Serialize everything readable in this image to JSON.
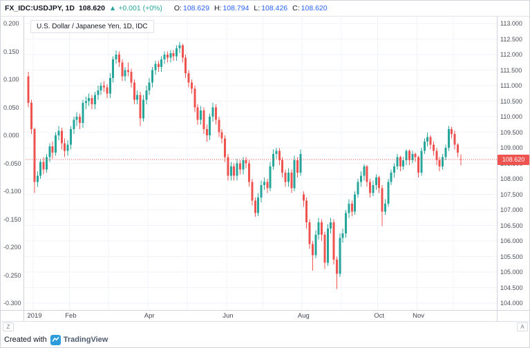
{
  "header": {
    "symbol": "FX_IDC:USDJPY, 1D",
    "price": "108.620",
    "arrow": "▲",
    "change": "+0.001 (+0%)",
    "o_label": "O:",
    "o": "108.629",
    "h_label": "H:",
    "h": "108.794",
    "l_label": "L:",
    "l": "108.426",
    "c_label": "C:",
    "c": "108.620"
  },
  "legend": {
    "title": "U.S. Dollar / Japanese Yen, 1D, IDC"
  },
  "axes": {
    "left_ticks": [
      "0.200",
      "0.150",
      "0.100",
      "0.050",
      "0.000",
      "-0.050",
      "-0.100",
      "-0.150",
      "-0.200",
      "-0.250",
      "-0.300"
    ],
    "right_ticks": [
      "113.000",
      "112.500",
      "112.000",
      "111.500",
      "111.000",
      "110.500",
      "110.000",
      "109.500",
      "109.000",
      "108.500",
      "108.000",
      "107.500",
      "107.000",
      "106.500",
      "106.000",
      "105.500",
      "105.000",
      "104.500",
      "104.000"
    ],
    "x_ticks": [
      {
        "label": "2019",
        "index": 2
      },
      {
        "label": "Feb",
        "index": 14
      },
      {
        "label": "Apr",
        "index": 40
      },
      {
        "label": "Jun",
        "index": 66
      },
      {
        "label": "Aug",
        "index": 91
      },
      {
        "label": "Oct",
        "index": 116
      },
      {
        "label": "Nov",
        "index": 129
      }
    ],
    "month_start_indices": [
      2,
      14,
      27,
      40,
      53,
      66,
      78,
      91,
      104,
      116,
      129,
      141
    ],
    "price_label": "108.620"
  },
  "controls": {
    "left_scale": "Z",
    "right_scale": "A"
  },
  "footer": {
    "created_with": "Created with",
    "brand": "TradingView"
  },
  "colors": {
    "up": "#26a69a",
    "down": "#ef5350",
    "price_line": "#ef5350",
    "badge_bg": "#ef5350",
    "grid": "#f0f3fa",
    "value_text": "#2962ff",
    "change_text": "#26a69a"
  },
  "chart_data": {
    "type": "candlestick",
    "title": "U.S. Dollar / Japanese Yen, 1D, IDC",
    "symbol": "FX_IDC:USDJPY",
    "timeframe": "1D",
    "right_axis_range": [
      104.0,
      113.0
    ],
    "left_axis_range": [
      -0.3,
      0.2
    ],
    "x_range": [
      "Dec 2018",
      "Dec 2019"
    ],
    "last": {
      "o": 108.629,
      "h": 108.794,
      "l": 108.426,
      "c": 108.62
    },
    "candles": [
      [
        111.3,
        111.45,
        110.3,
        110.45
      ],
      [
        110.45,
        110.55,
        109.45,
        109.6
      ],
      [
        109.6,
        109.65,
        107.55,
        107.9
      ],
      [
        107.9,
        108.25,
        107.75,
        108.1
      ],
      [
        108.1,
        108.65,
        108.0,
        108.55
      ],
      [
        108.55,
        108.7,
        108.15,
        108.3
      ],
      [
        108.3,
        108.8,
        108.2,
        108.7
      ],
      [
        108.7,
        109.15,
        108.55,
        109.05
      ],
      [
        109.05,
        109.2,
        108.65,
        108.85
      ],
      [
        108.85,
        109.5,
        108.75,
        109.4
      ],
      [
        109.4,
        109.7,
        109.25,
        109.55
      ],
      [
        109.55,
        109.65,
        108.95,
        109.15
      ],
      [
        109.15,
        109.3,
        108.7,
        108.9
      ],
      [
        108.9,
        109.25,
        108.75,
        109.1
      ],
      [
        109.1,
        109.7,
        108.95,
        109.6
      ],
      [
        109.6,
        110.0,
        109.45,
        109.9
      ],
      [
        109.9,
        110.15,
        109.7,
        110.0
      ],
      [
        110.0,
        110.1,
        109.6,
        109.8
      ],
      [
        109.8,
        110.55,
        109.65,
        110.45
      ],
      [
        110.45,
        110.65,
        110.25,
        110.5
      ],
      [
        110.5,
        110.75,
        110.35,
        110.6
      ],
      [
        110.6,
        110.7,
        110.25,
        110.4
      ],
      [
        110.4,
        110.8,
        110.25,
        110.7
      ],
      [
        110.7,
        111.0,
        110.55,
        110.85
      ],
      [
        110.85,
        111.1,
        110.7,
        111.0
      ],
      [
        111.0,
        111.15,
        110.8,
        110.95
      ],
      [
        110.95,
        111.05,
        110.6,
        110.75
      ],
      [
        110.75,
        111.4,
        110.6,
        111.25
      ],
      [
        111.25,
        111.95,
        111.1,
        111.85
      ],
      [
        111.85,
        112.13,
        111.7,
        112.0
      ],
      [
        112.0,
        112.1,
        111.6,
        111.75
      ],
      [
        111.75,
        111.85,
        111.15,
        111.3
      ],
      [
        111.3,
        111.6,
        111.15,
        111.5
      ],
      [
        111.5,
        111.75,
        111.3,
        111.45
      ],
      [
        111.45,
        111.55,
        110.95,
        111.1
      ],
      [
        111.1,
        111.2,
        110.4,
        110.55
      ],
      [
        110.55,
        110.85,
        110.4,
        110.7
      ],
      [
        110.7,
        110.8,
        109.7,
        109.95
      ],
      [
        109.95,
        110.7,
        109.85,
        110.55
      ],
      [
        110.55,
        111.0,
        110.4,
        110.85
      ],
      [
        110.85,
        111.25,
        110.7,
        111.1
      ],
      [
        111.1,
        111.6,
        110.95,
        111.5
      ],
      [
        111.5,
        111.8,
        111.35,
        111.7
      ],
      [
        111.7,
        111.8,
        111.45,
        111.6
      ],
      [
        111.6,
        111.95,
        111.45,
        111.85
      ],
      [
        111.85,
        112.1,
        111.7,
        112.0
      ],
      [
        112.0,
        112.1,
        111.75,
        111.9
      ],
      [
        111.9,
        112.15,
        111.75,
        112.05
      ],
      [
        112.05,
        112.15,
        111.8,
        111.95
      ],
      [
        111.95,
        112.3,
        111.8,
        112.2
      ],
      [
        112.2,
        112.4,
        112.05,
        112.3
      ],
      [
        112.3,
        112.35,
        111.75,
        111.9
      ],
      [
        111.9,
        112.0,
        111.25,
        111.4
      ],
      [
        111.4,
        111.5,
        110.95,
        111.1
      ],
      [
        111.1,
        111.2,
        110.75,
        110.9
      ],
      [
        110.9,
        111.0,
        110.15,
        110.3
      ],
      [
        110.3,
        110.4,
        109.75,
        109.9
      ],
      [
        109.9,
        110.35,
        109.75,
        110.2
      ],
      [
        110.2,
        110.3,
        109.45,
        109.6
      ],
      [
        109.6,
        109.75,
        109.2,
        109.4
      ],
      [
        109.4,
        110.1,
        109.25,
        110.0
      ],
      [
        110.0,
        110.45,
        109.85,
        110.3
      ],
      [
        110.3,
        110.4,
        109.75,
        109.9
      ],
      [
        109.9,
        110.0,
        109.35,
        109.5
      ],
      [
        109.5,
        109.6,
        109.15,
        109.3
      ],
      [
        109.3,
        109.4,
        108.55,
        108.7
      ],
      [
        108.7,
        108.8,
        107.95,
        108.1
      ],
      [
        108.1,
        108.55,
        107.95,
        108.4
      ],
      [
        108.4,
        108.5,
        107.95,
        108.1
      ],
      [
        108.1,
        108.65,
        107.95,
        108.5
      ],
      [
        108.5,
        108.6,
        108.15,
        108.3
      ],
      [
        108.3,
        108.7,
        108.15,
        108.6
      ],
      [
        108.6,
        108.7,
        108.35,
        108.5
      ],
      [
        108.5,
        108.6,
        107.75,
        107.9
      ],
      [
        107.9,
        108.0,
        107.15,
        107.3
      ],
      [
        107.3,
        107.4,
        106.78,
        106.9
      ],
      [
        106.9,
        107.55,
        106.8,
        107.4
      ],
      [
        107.4,
        107.95,
        107.25,
        107.8
      ],
      [
        107.8,
        108.05,
        107.65,
        107.9
      ],
      [
        107.9,
        108.0,
        107.55,
        107.7
      ],
      [
        107.7,
        108.55,
        107.6,
        108.4
      ],
      [
        108.4,
        108.95,
        108.3,
        108.8
      ],
      [
        108.8,
        109.0,
        108.65,
        108.9
      ],
      [
        108.9,
        108.99,
        108.45,
        108.6
      ],
      [
        108.6,
        108.7,
        108.05,
        108.2
      ],
      [
        108.2,
        108.3,
        107.75,
        107.9
      ],
      [
        107.9,
        108.35,
        107.75,
        108.2
      ],
      [
        108.2,
        108.3,
        107.55,
        107.7
      ],
      [
        107.7,
        108.75,
        107.6,
        108.6
      ],
      [
        108.6,
        108.7,
        108.05,
        108.2
      ],
      [
        108.2,
        108.95,
        108.1,
        108.8
      ],
      [
        107.5,
        107.6,
        107.1,
        107.3
      ],
      [
        107.3,
        107.4,
        106.4,
        106.6
      ],
      [
        106.6,
        106.7,
        105.75,
        105.9
      ],
      [
        105.9,
        106.0,
        105.05,
        105.55
      ],
      [
        105.55,
        106.35,
        105.45,
        106.2
      ],
      [
        106.2,
        106.75,
        106.05,
        106.6
      ],
      [
        106.6,
        106.7,
        106.0,
        106.2
      ],
      [
        106.2,
        106.3,
        105.1,
        105.3
      ],
      [
        105.3,
        106.55,
        105.2,
        106.4
      ],
      [
        106.4,
        106.75,
        106.25,
        106.6
      ],
      [
        106.6,
        106.7,
        105.25,
        105.4
      ],
      [
        105.4,
        105.5,
        104.46,
        104.95
      ],
      [
        104.95,
        106.25,
        104.85,
        106.1
      ],
      [
        106.1,
        106.4,
        105.95,
        106.25
      ],
      [
        106.25,
        107.0,
        106.1,
        106.9
      ],
      [
        106.9,
        107.35,
        106.75,
        107.2
      ],
      [
        107.2,
        107.3,
        106.8,
        106.95
      ],
      [
        106.95,
        107.6,
        106.85,
        107.5
      ],
      [
        107.5,
        108.0,
        107.4,
        107.9
      ],
      [
        107.9,
        108.25,
        107.75,
        108.1
      ],
      [
        108.1,
        108.47,
        107.95,
        108.4
      ],
      [
        108.4,
        108.45,
        107.75,
        107.9
      ],
      [
        107.9,
        108.0,
        107.4,
        107.55
      ],
      [
        107.55,
        107.95,
        107.45,
        107.8
      ],
      [
        107.8,
        108.15,
        107.65,
        108.05
      ],
      [
        108.05,
        108.1,
        107.55,
        107.7
      ],
      [
        107.7,
        107.8,
        106.48,
        106.95
      ],
      [
        106.95,
        107.35,
        106.85,
        107.2
      ],
      [
        107.2,
        108.0,
        107.1,
        107.9
      ],
      [
        107.9,
        108.3,
        107.8,
        108.2
      ],
      [
        108.2,
        108.5,
        108.05,
        108.4
      ],
      [
        108.4,
        108.8,
        108.3,
        108.7
      ],
      [
        108.7,
        108.75,
        108.25,
        108.4
      ],
      [
        108.4,
        108.7,
        108.3,
        108.6
      ],
      [
        108.6,
        108.95,
        108.45,
        108.9
      ],
      [
        108.9,
        108.95,
        108.45,
        108.6
      ],
      [
        108.6,
        108.9,
        108.5,
        108.8
      ],
      [
        108.8,
        108.85,
        108.55,
        108.7
      ],
      [
        108.7,
        108.75,
        108.05,
        108.2
      ],
      [
        108.2,
        109.0,
        108.1,
        108.9
      ],
      [
        108.9,
        109.3,
        108.8,
        109.2
      ],
      [
        109.2,
        109.49,
        109.05,
        109.35
      ],
      [
        109.35,
        109.4,
        108.95,
        109.1
      ],
      [
        109.1,
        109.2,
        108.75,
        108.9
      ],
      [
        108.9,
        109.0,
        108.45,
        108.6
      ],
      [
        108.6,
        108.7,
        108.25,
        108.4
      ],
      [
        108.4,
        108.8,
        108.3,
        108.7
      ],
      [
        108.7,
        109.1,
        108.6,
        109.0
      ],
      [
        109.0,
        109.7,
        108.9,
        109.6
      ],
      [
        109.6,
        109.68,
        109.3,
        109.45
      ],
      [
        109.45,
        109.55,
        108.95,
        109.1
      ],
      [
        109.1,
        109.15,
        108.7,
        108.85
      ],
      [
        108.63,
        108.79,
        108.43,
        108.62
      ]
    ]
  }
}
